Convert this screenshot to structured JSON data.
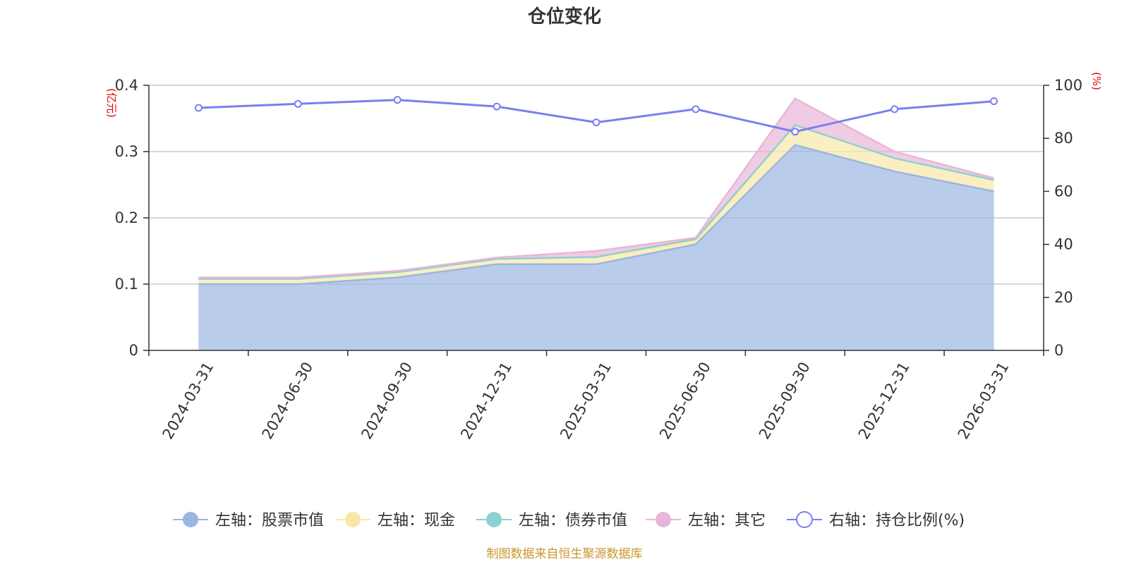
{
  "chart_data": {
    "type": "area",
    "title": "仓位变化",
    "x": [
      "2024-03-31",
      "2024-06-30",
      "2024-09-30",
      "2024-12-31",
      "2025-03-31",
      "2025-06-30",
      "2025-09-30",
      "2025-12-31",
      "2026-03-31"
    ],
    "left_axis": {
      "unit": "(亿元)",
      "ylim": [
        0,
        0.4
      ],
      "ticks": [
        "0",
        "0.1",
        "0.2",
        "0.3",
        "0.4"
      ]
    },
    "right_axis": {
      "unit": "(%)",
      "ylim": [
        0,
        100
      ],
      "ticks": [
        "0",
        "20",
        "40",
        "60",
        "80",
        "100"
      ]
    },
    "series": [
      {
        "name": "左轴：股票市值",
        "axis": "left",
        "kind": "stacked-area",
        "color": "#9bb6e0",
        "values": [
          0.1,
          0.1,
          0.11,
          0.13,
          0.13,
          0.16,
          0.31,
          0.27,
          0.24
        ]
      },
      {
        "name": "左轴：现金",
        "axis": "left",
        "kind": "stacked-area",
        "color": "#f8e8a8",
        "values": [
          0.008,
          0.008,
          0.008,
          0.008,
          0.01,
          0.005,
          0.03,
          0.02,
          0.017
        ]
      },
      {
        "name": "左轴：债券市值",
        "axis": "left",
        "kind": "stacked-area",
        "color": "#8ed1d1",
        "values": [
          0,
          0,
          0,
          0,
          0.001,
          0.003,
          0,
          0,
          0
        ]
      },
      {
        "name": "左轴：其它",
        "axis": "left",
        "kind": "stacked-area",
        "color": "#e8b6d8",
        "values": [
          0.002,
          0.002,
          0.002,
          0.002,
          0.009,
          0.002,
          0.04,
          0.01,
          0.003
        ]
      },
      {
        "name": "右轴：持仓比例(%)",
        "axis": "right",
        "kind": "line",
        "color": "#7b7ef0",
        "values": [
          91.5,
          93.0,
          94.5,
          92.0,
          86.0,
          91.0,
          82.5,
          91.0,
          94.0
        ]
      }
    ],
    "legend_position": "bottom",
    "grid": true,
    "source": "制图数据来自恒生聚源数据库"
  }
}
